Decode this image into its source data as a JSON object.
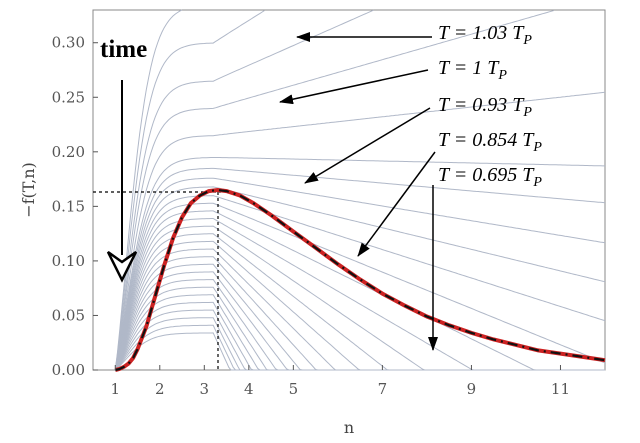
{
  "chart_data": {
    "type": "line",
    "title": "",
    "xlabel": "n",
    "ylabel": "−f(T,n)",
    "xlim": [
      0.5,
      12
    ],
    "ylim": [
      0,
      0.33
    ],
    "x_ticks": [
      1,
      2,
      3,
      4,
      5,
      7,
      9,
      11
    ],
    "y_ticks": [
      {
        "value": 0.0,
        "label": "0.00"
      },
      {
        "value": 0.05,
        "label": "0.05"
      },
      {
        "value": 0.1,
        "label": "0.10"
      },
      {
        "value": 0.15,
        "label": "0.15"
      },
      {
        "value": 0.2,
        "label": "0.20"
      },
      {
        "value": 0.25,
        "label": "0.25"
      },
      {
        "value": 0.3,
        "label": "0.30"
      }
    ],
    "grid": false,
    "curve_family": [
      {
        "plateau": 0.335,
        "slope": 0.038
      },
      {
        "plateau": 0.3,
        "slope": 0.0285
      },
      {
        "plateau": 0.265,
        "slope": 0.02
      },
      {
        "plateau": 0.24,
        "slope": 0.013
      },
      {
        "plateau": 0.215,
        "slope": 0.005
      },
      {
        "plateau": 0.195,
        "slope": -0.001
      },
      {
        "plateau": 0.185,
        "slope": -0.004
      },
      {
        "plateau": 0.176,
        "slope": -0.0075
      },
      {
        "plateau": 0.168,
        "slope": -0.011
      },
      {
        "plateau": 0.16,
        "slope": -0.0145
      },
      {
        "plateau": 0.153,
        "slope": -0.0185
      },
      {
        "plateau": 0.146,
        "slope": -0.0225
      },
      {
        "plateau": 0.139,
        "slope": -0.0265
      },
      {
        "plateau": 0.132,
        "slope": -0.031
      },
      {
        "plateau": 0.125,
        "slope": -0.0355
      },
      {
        "plateau": 0.118,
        "slope": -0.04
      },
      {
        "plateau": 0.111,
        "slope": -0.045
      },
      {
        "plateau": 0.104,
        "slope": -0.05
      },
      {
        "plateau": 0.097,
        "slope": -0.055
      },
      {
        "plateau": 0.09,
        "slope": -0.06
      },
      {
        "plateau": 0.083,
        "slope": -0.065
      },
      {
        "plateau": 0.076,
        "slope": -0.07
      },
      {
        "plateau": 0.069,
        "slope": -0.075
      },
      {
        "plateau": 0.062,
        "slope": -0.08
      },
      {
        "plateau": 0.055,
        "slope": -0.085
      },
      {
        "plateau": 0.048,
        "slope": -0.09
      },
      {
        "plateau": 0.041,
        "slope": -0.095
      },
      {
        "plateau": 0.034,
        "slope": -0.1
      }
    ],
    "highlighted_curve": {
      "color": "#cc2222",
      "x": [
        1.0,
        1.1,
        1.2,
        1.3,
        1.4,
        1.5,
        1.7,
        1.9,
        2.1,
        2.3,
        2.5,
        2.7,
        2.9,
        3.1,
        3.3,
        3.5,
        3.8,
        4.1,
        4.5,
        5.0,
        5.5,
        6.0,
        6.5,
        7.0,
        7.5,
        8.0,
        8.5,
        9.0,
        9.5,
        10.0,
        10.5,
        11.0,
        11.5,
        12.0
      ],
      "y": [
        0.0,
        0.001,
        0.003,
        0.006,
        0.011,
        0.019,
        0.04,
        0.068,
        0.096,
        0.121,
        0.14,
        0.153,
        0.16,
        0.164,
        0.165,
        0.164,
        0.16,
        0.153,
        0.142,
        0.127,
        0.112,
        0.097,
        0.083,
        0.07,
        0.059,
        0.049,
        0.041,
        0.034,
        0.028,
        0.023,
        0.018,
        0.015,
        0.012,
        0.009
      ]
    },
    "reference_lines": {
      "x": 3,
      "y": 0.163
    },
    "annotations": [
      {
        "id": "t103",
        "text_prefix": "T = 1.03 T",
        "subscript": "P",
        "tip": [
          4.1,
          0.297
        ]
      },
      {
        "id": "t1",
        "text_prefix": "T = 1 T",
        "subscript": "P",
        "tip": [
          3.6,
          0.246
        ]
      },
      {
        "id": "t093",
        "text_prefix": "T = 0.93 T",
        "subscript": "P",
        "tip": [
          4.5,
          0.166
        ]
      },
      {
        "id": "t0854",
        "text_prefix": "T = 0.854 T",
        "subscript": "P",
        "tip": [
          6.4,
          0.099
        ]
      },
      {
        "id": "t0695",
        "text_prefix": "T = 0.695 T",
        "subscript": "P",
        "tip": [
          8.2,
          0.01
        ]
      }
    ],
    "time_label": "time",
    "colors": {
      "family": "#b0b8c8",
      "highlight_dash": "#111111",
      "axis": "#555555"
    }
  }
}
